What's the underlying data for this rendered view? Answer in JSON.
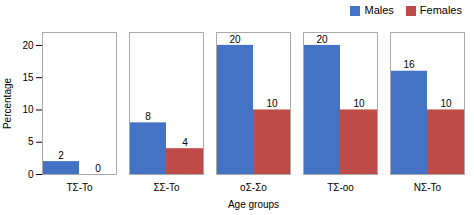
{
  "chart_data": {
    "type": "bar",
    "categories": [
      "ΤΣ-Το",
      "ΣΣ-Το",
      "οΣ-Σο",
      "ΤΣ-οο",
      "ΝΣ-Το"
    ],
    "series": [
      {
        "name": "Males",
        "color": "#4472C4",
        "values": [
          2,
          8,
          20,
          20,
          16
        ]
      },
      {
        "name": "Females",
        "color": "#BE4B48",
        "values": [
          0,
          4,
          10,
          10,
          10
        ]
      }
    ],
    "xlabel": "Age groups",
    "ylabel": "Percentage",
    "ylim": [
      0,
      22
    ],
    "yticks": [
      0,
      5,
      10,
      15,
      20
    ],
    "grid": false,
    "legend": "upper right",
    "data_labels": true
  }
}
